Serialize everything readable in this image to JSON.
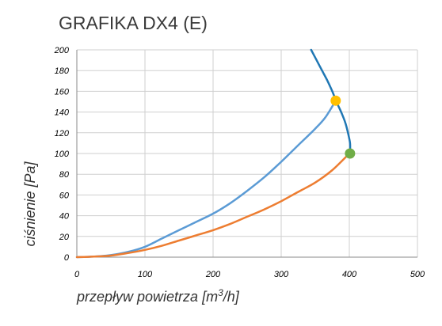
{
  "chart_data": {
    "type": "line",
    "title": "GRAFIKA DX4 (E)",
    "xlabel": "przepływ powietrza [m",
    "xlabel_sup": "3",
    "xlabel_tail": "/h]",
    "ylabel": "ciśnienie [Pa]",
    "xlim": [
      0,
      500
    ],
    "ylim": [
      0,
      200
    ],
    "x_ticks": [
      0,
      100,
      200,
      300,
      400,
      500
    ],
    "y_ticks": [
      0,
      20,
      40,
      60,
      80,
      100,
      120,
      140,
      160,
      180,
      200
    ],
    "grid": true,
    "series": [
      {
        "color": "#5b9bd5",
        "points": [
          [
            0,
            0
          ],
          [
            25,
            0.5
          ],
          [
            50,
            2
          ],
          [
            75,
            5
          ],
          [
            100,
            10
          ],
          [
            125,
            18
          ],
          [
            150,
            26
          ],
          [
            175,
            34
          ],
          [
            200,
            42
          ],
          [
            225,
            52
          ],
          [
            250,
            64
          ],
          [
            275,
            77
          ],
          [
            300,
            92
          ],
          [
            325,
            108
          ],
          [
            350,
            124
          ],
          [
            365,
            135
          ],
          [
            380,
            151
          ]
        ]
      },
      {
        "color": "#ed7d31",
        "points": [
          [
            0,
            0
          ],
          [
            25,
            0.5
          ],
          [
            50,
            1.5
          ],
          [
            75,
            4
          ],
          [
            100,
            7
          ],
          [
            125,
            11
          ],
          [
            150,
            16
          ],
          [
            175,
            21
          ],
          [
            200,
            26
          ],
          [
            225,
            32
          ],
          [
            250,
            39
          ],
          [
            275,
            46
          ],
          [
            300,
            54
          ],
          [
            325,
            63
          ],
          [
            350,
            72
          ],
          [
            375,
            84
          ],
          [
            400,
            100
          ]
        ]
      },
      {
        "color": "#1f77b4",
        "points": [
          [
            344,
            200
          ],
          [
            352,
            190
          ],
          [
            360,
            180
          ],
          [
            368,
            170
          ],
          [
            375,
            160
          ],
          [
            381,
            150
          ],
          [
            388,
            140
          ],
          [
            394,
            130
          ],
          [
            398,
            120
          ],
          [
            401,
            110
          ],
          [
            401,
            100
          ]
        ]
      }
    ],
    "markers": [
      {
        "x": 380,
        "y": 151,
        "color": "#ffc000"
      },
      {
        "x": 401,
        "y": 100,
        "color": "#70ad47"
      }
    ]
  }
}
